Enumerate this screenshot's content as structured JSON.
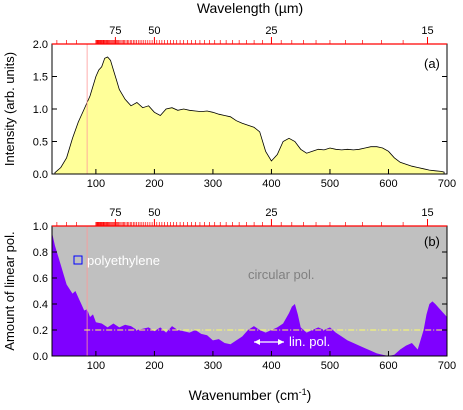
{
  "figure": {
    "shared_axes": {
      "top_xlabel": "Wavelength (µm)",
      "top_tick_labels": [
        "75",
        "50",
        "25",
        "15"
      ],
      "bottom_xlabel_main": "Wavenumber (cm",
      "bottom_xlabel_sup": "-1",
      "bottom_xlabel_end": ")",
      "bottom_tick_labels": [
        "100",
        "200",
        "300",
        "400",
        "500",
        "600",
        "700"
      ]
    }
  },
  "chart_data": [
    {
      "type": "area",
      "panel_label": "(a)",
      "xlabel": "Wavenumber (cm-1)",
      "ylabel": "Intensity (arb. units)",
      "top_axis": {
        "label": "Wavelength (µm)",
        "ticks_um": [
          75,
          50,
          25,
          15
        ]
      },
      "xlim": [
        25,
        700
      ],
      "ylim": [
        0,
        2.0
      ],
      "y_tick_labels": [
        "0.0",
        "0.5",
        "1.0",
        "1.5",
        "2.0"
      ],
      "fill_color": "#ffff99",
      "line_color": "#000000",
      "series": [
        {
          "x": [
            30,
            40,
            50,
            60,
            70,
            80,
            90,
            100,
            105,
            110,
            115,
            120,
            125,
            130,
            135,
            140,
            150,
            160,
            170,
            180,
            190,
            200,
            210,
            220,
            230,
            240,
            250,
            260,
            270,
            280,
            290,
            300,
            310,
            320,
            330,
            340,
            350,
            360,
            370,
            380,
            390,
            400,
            410,
            420,
            430,
            440,
            450,
            460,
            470,
            480,
            490,
            500,
            510,
            520,
            530,
            540,
            550,
            560,
            570,
            580,
            590,
            600,
            610,
            620,
            630,
            640,
            650,
            660,
            670,
            680,
            690,
            695
          ],
          "y": [
            0.02,
            0.1,
            0.25,
            0.55,
            0.8,
            1.0,
            1.2,
            1.5,
            1.6,
            1.65,
            1.78,
            1.8,
            1.75,
            1.6,
            1.45,
            1.3,
            1.15,
            1.05,
            1.1,
            1.02,
            1.05,
            0.95,
            0.9,
            1.0,
            1.02,
            0.98,
            1.0,
            0.98,
            0.97,
            0.96,
            0.97,
            0.95,
            0.92,
            0.9,
            0.88,
            0.82,
            0.78,
            0.75,
            0.72,
            0.65,
            0.35,
            0.2,
            0.3,
            0.5,
            0.55,
            0.5,
            0.38,
            0.32,
            0.35,
            0.38,
            0.37,
            0.4,
            0.38,
            0.37,
            0.38,
            0.37,
            0.38,
            0.4,
            0.42,
            0.42,
            0.4,
            0.35,
            0.25,
            0.18,
            0.15,
            0.12,
            0.1,
            0.08,
            0.06,
            0.05,
            0.04,
            0.03
          ]
        }
      ]
    },
    {
      "type": "area",
      "panel_label": "(b)",
      "xlabel": "Wavenumber (cm-1)",
      "ylabel": "Amount of linear pol.",
      "top_axis": {
        "label": "Wavelength (µm)",
        "ticks_um": [
          75,
          50,
          25,
          15
        ]
      },
      "xlim": [
        25,
        700
      ],
      "ylim": [
        0,
        1.0
      ],
      "y_tick_labels": [
        "0.0",
        "0.2",
        "0.4",
        "0.6",
        "0.8",
        "1.0"
      ],
      "background_color": "#c0c0c0",
      "fill_color": "#7f00ff",
      "reference_line": {
        "y": 0.2,
        "color": "#ffff66",
        "style": "dash-dot"
      },
      "annotations": [
        "polyethylene",
        "circular pol.",
        "lin. pol."
      ],
      "series": [
        {
          "x": [
            25,
            30,
            40,
            50,
            60,
            65,
            70,
            75,
            80,
            85,
            90,
            95,
            100,
            110,
            120,
            130,
            140,
            150,
            160,
            170,
            180,
            190,
            200,
            210,
            220,
            230,
            240,
            250,
            260,
            270,
            280,
            290,
            300,
            310,
            320,
            330,
            340,
            350,
            360,
            370,
            380,
            390,
            400,
            410,
            420,
            430,
            435,
            440,
            445,
            450,
            460,
            470,
            480,
            490,
            500,
            510,
            520,
            530,
            540,
            550,
            560,
            570,
            580,
            590,
            600,
            610,
            620,
            630,
            640,
            650,
            660,
            665,
            670,
            675,
            680,
            690,
            700
          ],
          "y": [
            0.95,
            0.85,
            0.7,
            0.55,
            0.48,
            0.5,
            0.45,
            0.4,
            0.35,
            0.36,
            0.3,
            0.32,
            0.26,
            0.25,
            0.22,
            0.25,
            0.22,
            0.24,
            0.23,
            0.2,
            0.21,
            0.22,
            0.19,
            0.22,
            0.18,
            0.23,
            0.2,
            0.19,
            0.18,
            0.2,
            0.17,
            0.16,
            0.12,
            0.13,
            0.1,
            0.09,
            0.12,
            0.15,
            0.2,
            0.23,
            0.2,
            0.18,
            0.2,
            0.22,
            0.25,
            0.33,
            0.38,
            0.4,
            0.32,
            0.22,
            0.18,
            0.2,
            0.22,
            0.2,
            0.22,
            0.18,
            0.15,
            0.12,
            0.1,
            0.08,
            0.06,
            0.04,
            0.02,
            0.01,
            0.0,
            0.01,
            0.05,
            0.08,
            0.1,
            0.05,
            0.2,
            0.32,
            0.4,
            0.42,
            0.4,
            0.35,
            0.3
          ]
        }
      ]
    }
  ]
}
